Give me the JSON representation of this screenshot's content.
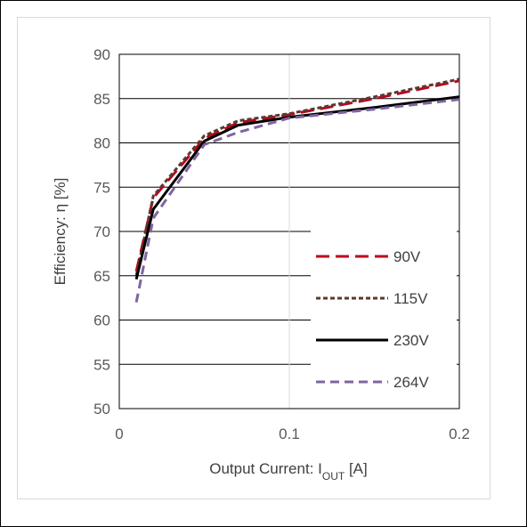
{
  "chart_data": {
    "type": "line",
    "xlabel": {
      "main": "Output Current: I",
      "sub": "OUT",
      "tail": " [A]"
    },
    "ylabel": "Efficiency: η [%]",
    "xlim": [
      0,
      0.2
    ],
    "ylim": [
      50,
      90
    ],
    "x_ticks": [
      {
        "value": 0,
        "label": "0"
      },
      {
        "value": 0.1,
        "label": "0.1"
      },
      {
        "value": 0.2,
        "label": "0.2"
      }
    ],
    "y_ticks": [
      {
        "value": 50,
        "label": "50"
      },
      {
        "value": 55,
        "label": "55"
      },
      {
        "value": 60,
        "label": "60"
      },
      {
        "value": 65,
        "label": "65"
      },
      {
        "value": 70,
        "label": "70"
      },
      {
        "value": 75,
        "label": "75"
      },
      {
        "value": 80,
        "label": "80"
      },
      {
        "value": 85,
        "label": "85"
      },
      {
        "value": 90,
        "label": "90"
      }
    ],
    "grid": "horizontal major; vertical at 0.1",
    "legend_position": "right-center",
    "series": [
      {
        "name": "90V",
        "color": "#c00020",
        "dash": "long-dash",
        "x": [
          0.01,
          0.02,
          0.05,
          0.07,
          0.1,
          0.15,
          0.2
        ],
        "y": [
          65.5,
          73.8,
          80.5,
          82.3,
          83.2,
          85.0,
          87.0
        ]
      },
      {
        "name": "115V",
        "color": "#5a3a2e",
        "dash": "short-dash",
        "x": [
          0.01,
          0.02,
          0.05,
          0.07,
          0.1,
          0.15,
          0.2
        ],
        "y": [
          65.0,
          74.0,
          80.8,
          82.5,
          83.3,
          85.2,
          87.2
        ]
      },
      {
        "name": "230V",
        "color": "#000000",
        "dash": "solid",
        "x": [
          0.01,
          0.02,
          0.05,
          0.07,
          0.1,
          0.15,
          0.2
        ],
        "y": [
          64.6,
          72.5,
          80.2,
          82.0,
          82.9,
          84.0,
          85.2
        ]
      },
      {
        "name": "264V",
        "color": "#8064a2",
        "dash": "dash",
        "x": [
          0.01,
          0.02,
          0.05,
          0.07,
          0.1,
          0.15,
          0.2
        ],
        "y": [
          62.0,
          71.5,
          79.8,
          81.2,
          82.8,
          83.8,
          84.9
        ]
      }
    ]
  }
}
